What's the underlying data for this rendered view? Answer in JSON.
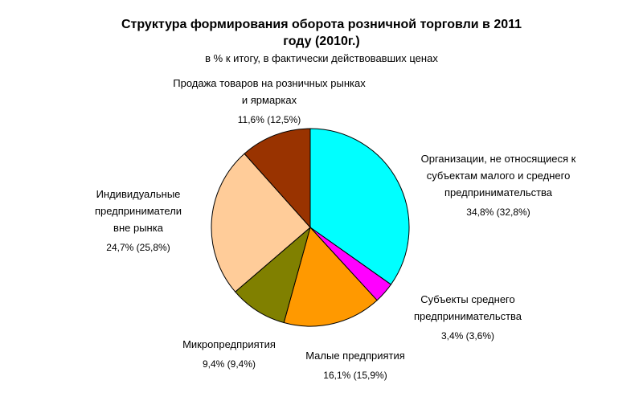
{
  "chart_data": {
    "type": "pie",
    "title": "Структура формирования оборота розничной торговли в 2011 году (2010г.)",
    "subtitle": "в % к итогу, в фактически действовавших ценах",
    "categories": [
      "Организации, не относящиеся к субъектам малого и среднего предпринимательства",
      "Субъекты среднего предпринимательства",
      "Малые предприятия",
      "Микропредприятия",
      "Индивидуальные предприниматели вне рынка",
      "Продажа товаров на розничных рынках и ярмарках"
    ],
    "values": [
      34.8,
      3.4,
      16.1,
      9.4,
      24.7,
      11.6
    ],
    "value_labels": [
      "34,8%",
      "3,4%",
      "16,1%",
      "9,4%",
      "24,7%",
      "11,6%"
    ],
    "previous_values": [
      32.8,
      3.6,
      15.9,
      9.4,
      25.8,
      12.5
    ],
    "previous_value_labels": [
      "(32,8%)",
      "(3,6%)",
      "(15,9%)",
      "(9,4%)",
      "(25,8%)",
      "(12,5%)"
    ],
    "colors": [
      "#00ffff",
      "#ff00ff",
      "#ff9900",
      "#808000",
      "#ffcc99",
      "#993300"
    ]
  }
}
